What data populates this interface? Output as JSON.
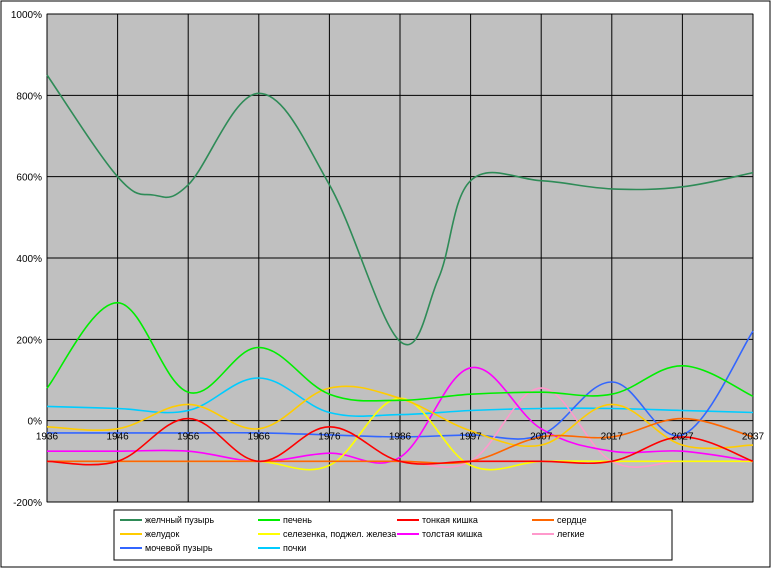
{
  "chart_data": {
    "type": "line",
    "title": "",
    "xlabel": "",
    "ylabel": "",
    "x": [
      1936,
      1946,
      1956,
      1966,
      1976,
      1986,
      1997,
      2007,
      2017,
      2027,
      2037
    ],
    "x_tick_labels": [
      "1936",
      "1946",
      "1956",
      "1966",
      "1976",
      "1986",
      "1997",
      "2007",
      "2017",
      "2027",
      "2037"
    ],
    "ylim": [
      -200,
      1000
    ],
    "y_ticks": [
      -200,
      0,
      200,
      400,
      600,
      800,
      1000
    ],
    "y_tick_labels": [
      "-200%",
      "0%",
      "200%",
      "400%",
      "600%",
      "800%",
      "1000%"
    ],
    "grid": true,
    "legend_position": "bottom",
    "background": "#c0c0c0",
    "series": [
      {
        "name": "желчный пузырь",
        "color": "#2e8b57",
        "x": [
          1936,
          1946,
          1951,
          1956,
          1966,
          1976,
          1986,
          1992,
          1997,
          2007,
          2017,
          2027,
          2037
        ],
        "values": [
          850,
          600,
          555,
          580,
          805,
          580,
          195,
          350,
          590,
          590,
          570,
          575,
          610
        ]
      },
      {
        "name": "печень",
        "color": "#00ee00",
        "x": [
          1936,
          1946,
          1956,
          1966,
          1976,
          1986,
          1997,
          2007,
          2017,
          2027,
          2037
        ],
        "values": [
          80,
          290,
          70,
          180,
          65,
          50,
          65,
          70,
          65,
          135,
          60
        ]
      },
      {
        "name": "тонкая кишка",
        "color": "#ff0000",
        "x": [
          1936,
          1946,
          1956,
          1966,
          1976,
          1986,
          1997,
          2007,
          2017,
          2027,
          2037
        ],
        "values": [
          -100,
          -100,
          5,
          -100,
          -15,
          -100,
          -100,
          -100,
          -100,
          -40,
          -100
        ]
      },
      {
        "name": "сердце",
        "color": "#ff6600",
        "x": [
          1936,
          1946,
          1956,
          1966,
          1976,
          1986,
          1997,
          2007,
          2017,
          2027,
          2037
        ],
        "values": [
          -100,
          -100,
          -100,
          -100,
          -100,
          -100,
          -100,
          -40,
          -40,
          5,
          -40
        ]
      },
      {
        "name": "желудок",
        "color": "#ffcc00",
        "x": [
          1936,
          1946,
          1956,
          1966,
          1976,
          1986,
          1997,
          2007,
          2017,
          2027,
          2037
        ],
        "values": [
          -15,
          -20,
          40,
          -20,
          80,
          55,
          -25,
          -60,
          40,
          -60,
          -60
        ]
      },
      {
        "name": "селезенка, поджел. железа",
        "color": "#ffff00",
        "x": [
          1936,
          1946,
          1956,
          1966,
          1976,
          1986,
          1997,
          2007,
          2017,
          2027,
          2037
        ],
        "values": [
          -100,
          -100,
          -100,
          -100,
          -110,
          55,
          -110,
          -100,
          -100,
          -100,
          -100
        ]
      },
      {
        "name": "толстая кишка",
        "color": "#ff00ff",
        "x": [
          1936,
          1946,
          1956,
          1966,
          1976,
          1986,
          1997,
          2007,
          2017,
          2027,
          2037
        ],
        "values": [
          -75,
          -75,
          -75,
          -100,
          -80,
          -90,
          130,
          -20,
          -75,
          -75,
          -100
        ]
      },
      {
        "name": "легкие",
        "color": "#ff99cc",
        "x": [
          1936,
          1946,
          1956,
          1966,
          1976,
          1986,
          1997,
          2007,
          2017,
          2027,
          2037
        ],
        "values": [
          -100,
          -100,
          -100,
          -100,
          -100,
          -100,
          -100,
          80,
          -100,
          -100,
          -100
        ]
      },
      {
        "name": "мочевой пузырь",
        "color": "#3366ff",
        "x": [
          1936,
          1946,
          1956,
          1966,
          1976,
          1986,
          1997,
          2007,
          2017,
          2027,
          2037
        ],
        "values": [
          -30,
          -30,
          -30,
          -30,
          -35,
          -40,
          -35,
          -35,
          95,
          -35,
          220
        ]
      },
      {
        "name": "почки",
        "color": "#00ccff",
        "x": [
          1936,
          1946,
          1956,
          1966,
          1976,
          1986,
          1997,
          2007,
          2017,
          2027,
          2037
        ],
        "values": [
          35,
          30,
          25,
          105,
          20,
          15,
          25,
          30,
          30,
          25,
          20
        ]
      }
    ]
  }
}
